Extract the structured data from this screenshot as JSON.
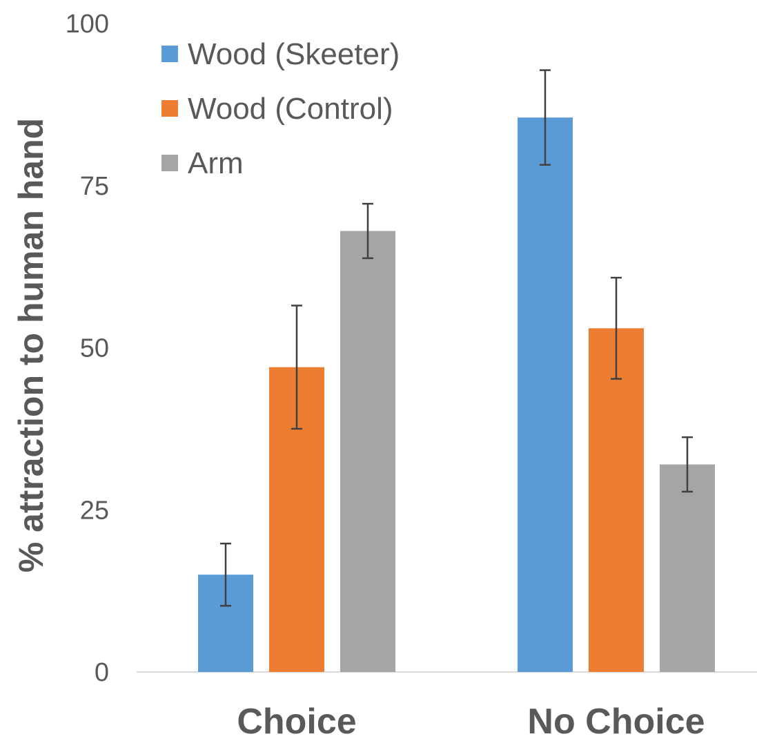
{
  "chart_data": {
    "type": "bar",
    "title": "",
    "xlabel": "",
    "ylabel": "% attraction to human hand",
    "ylim": [
      0,
      100
    ],
    "yticks": [
      0,
      25,
      50,
      75,
      100
    ],
    "grid": false,
    "legend_position": "top-left",
    "categories": [
      "Choice",
      "No Choice"
    ],
    "series": [
      {
        "name": "Wood (Skeeter)",
        "color": "#5b9bd5",
        "values": [
          15,
          85.5
        ],
        "error": [
          4.8,
          7.3
        ]
      },
      {
        "name": "Wood (Control)",
        "color": "#ed7d31",
        "values": [
          47,
          53
        ],
        "error": [
          9.5,
          7.8
        ]
      },
      {
        "name": "Arm",
        "color": "#a5a5a5",
        "values": [
          68,
          32
        ],
        "error": [
          4.2,
          4.2
        ]
      }
    ]
  }
}
